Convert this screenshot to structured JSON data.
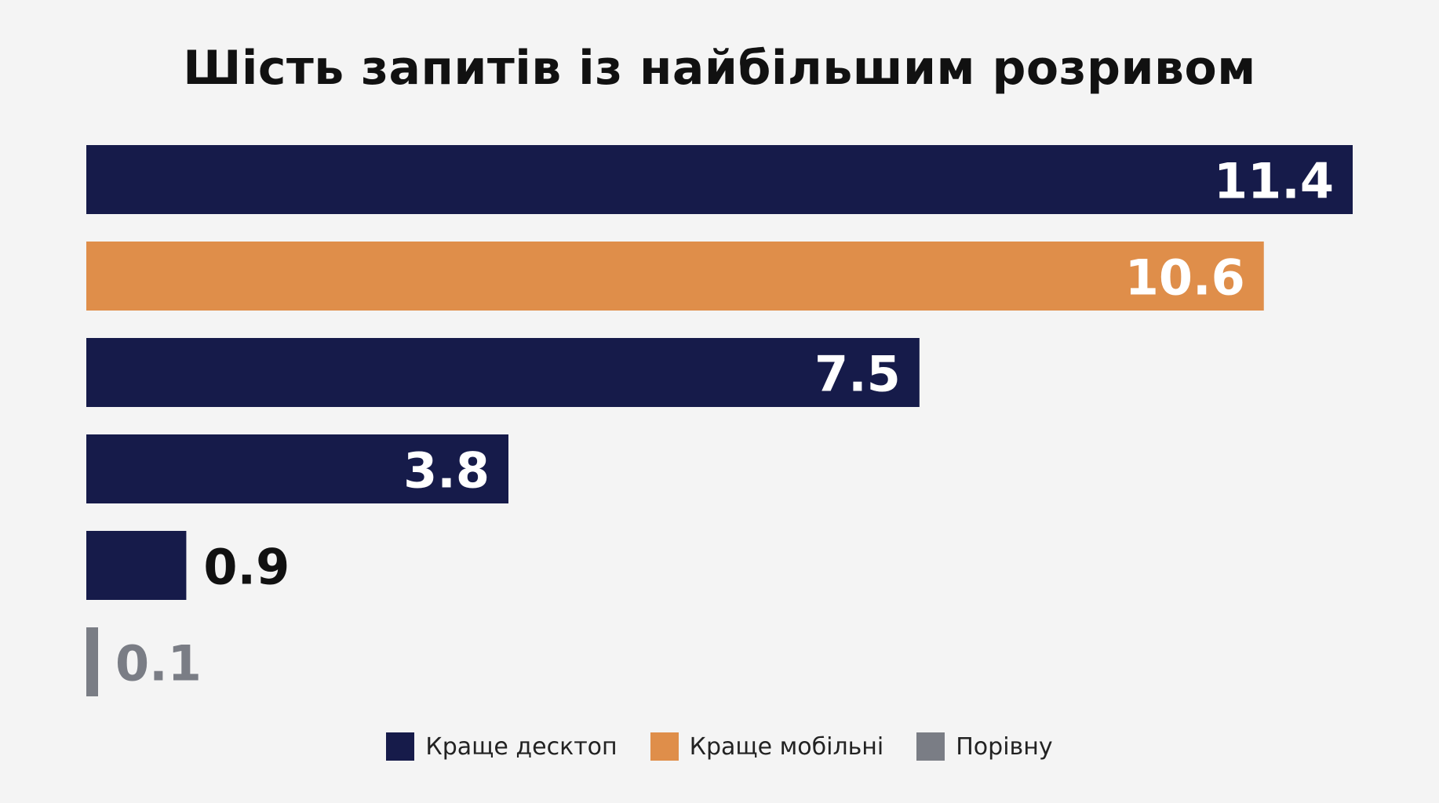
{
  "chart_data": {
    "type": "bar",
    "orientation": "horizontal",
    "title": "Шість запитів із найбільшим розривом",
    "values": [
      11.4,
      10.6,
      7.5,
      3.8,
      0.9,
      0.1
    ],
    "value_labels": [
      "11.4",
      "10.6",
      "7.5",
      "3.8",
      "0.9",
      "0.1"
    ],
    "bar_groups": [
      "desktop",
      "mobile",
      "desktop",
      "desktop",
      "desktop",
      "equal"
    ],
    "xlim": [
      0,
      11.4
    ],
    "grid": false,
    "legend_position": "bottom-center",
    "legend": [
      {
        "key": "desktop",
        "label": "Краще десктоп",
        "color": "#161b4a"
      },
      {
        "key": "mobile",
        "label": "Краще мобільні",
        "color": "#df8e4a"
      },
      {
        "key": "equal",
        "label": "Порівну",
        "color": "#7a7d85"
      }
    ]
  },
  "colors": {
    "background": "#f4f4f4",
    "label_inside": "#ffffff",
    "label_outside": "#111111",
    "label_equal": "#7a7d85"
  }
}
